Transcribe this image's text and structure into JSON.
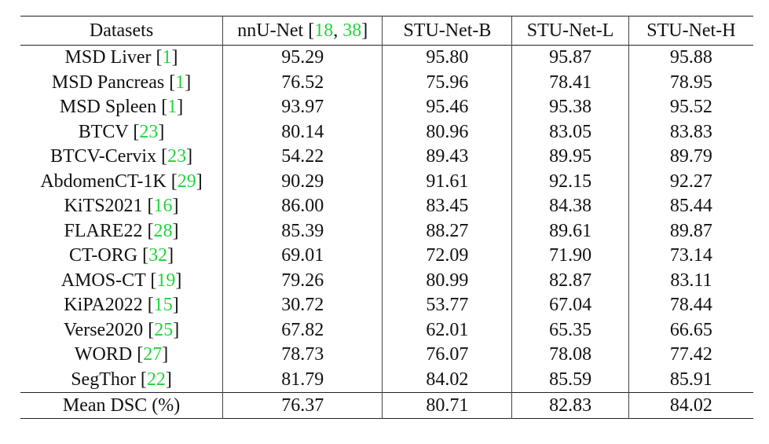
{
  "table": {
    "headers": {
      "dataset": "Datasets",
      "nnunet": {
        "name": "nnU-Net ",
        "open": "[",
        "cites": [
          "18",
          "38"
        ],
        "sep": ", ",
        "close": "]"
      },
      "stu_b": "STU-Net-B",
      "stu_l": "STU-Net-L",
      "stu_h": "STU-Net-H"
    },
    "rows": [
      {
        "name": "MSD Liver ",
        "cite": "1",
        "nnunet": "95.29",
        "stu_b": "95.80",
        "stu_l": "95.87",
        "stu_h": "95.88"
      },
      {
        "name": "MSD Pancreas ",
        "cite": "1",
        "nnunet": "76.52",
        "stu_b": "75.96",
        "stu_l": "78.41",
        "stu_h": "78.95"
      },
      {
        "name": "MSD Spleen ",
        "cite": "1",
        "nnunet": "93.97",
        "stu_b": "95.46",
        "stu_l": "95.38",
        "stu_h": "95.52"
      },
      {
        "name": "BTCV ",
        "cite": "23",
        "nnunet": "80.14",
        "stu_b": "80.96",
        "stu_l": "83.05",
        "stu_h": "83.83"
      },
      {
        "name": "BTCV-Cervix ",
        "cite": "23",
        "nnunet": "54.22",
        "stu_b": "89.43",
        "stu_l": "89.95",
        "stu_h": "89.79"
      },
      {
        "name": "AbdomenCT-1K ",
        "cite": "29",
        "nnunet": "90.29",
        "stu_b": "91.61",
        "stu_l": "92.15",
        "stu_h": "92.27"
      },
      {
        "name": "KiTS2021 ",
        "cite": "16",
        "nnunet": "86.00",
        "stu_b": "83.45",
        "stu_l": "84.38",
        "stu_h": "85.44"
      },
      {
        "name": "FLARE22 ",
        "cite": "28",
        "nnunet": "85.39",
        "stu_b": "88.27",
        "stu_l": "89.61",
        "stu_h": "89.87"
      },
      {
        "name": "CT-ORG ",
        "cite": "32",
        "nnunet": "69.01",
        "stu_b": "72.09",
        "stu_l": "71.90",
        "stu_h": "73.14"
      },
      {
        "name": "AMOS-CT ",
        "cite": "19",
        "nnunet": "79.26",
        "stu_b": "80.99",
        "stu_l": "82.87",
        "stu_h": "83.11"
      },
      {
        "name": "KiPA2022 ",
        "cite": "15",
        "nnunet": "30.72",
        "stu_b": "53.77",
        "stu_l": "67.04",
        "stu_h": "78.44"
      },
      {
        "name": "Verse2020 ",
        "cite": "25",
        "nnunet": "67.82",
        "stu_b": "62.01",
        "stu_l": "65.35",
        "stu_h": "66.65"
      },
      {
        "name": "WORD ",
        "cite": "27",
        "nnunet": "78.73",
        "stu_b": "76.07",
        "stu_l": "78.08",
        "stu_h": "77.42"
      },
      {
        "name": "SegThor ",
        "cite": "22",
        "nnunet": "81.79",
        "stu_b": "84.02",
        "stu_l": "85.59",
        "stu_h": "85.91"
      }
    ],
    "mean": {
      "name": "Mean DSC (%)",
      "nnunet": "76.37",
      "stu_b": "80.71",
      "stu_l": "82.83",
      "stu_h": "84.02"
    }
  },
  "colors": {
    "citation": "#22d43a",
    "text": "#111111",
    "rule": "#222222"
  }
}
